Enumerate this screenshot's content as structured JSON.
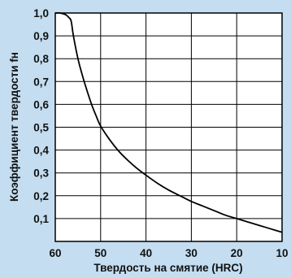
{
  "chart_data": {
    "type": "line",
    "title": "",
    "xlabel": "Твердость на смятие (HRC)",
    "ylabel": "Коэффициент твердости fн",
    "xlim": [
      60,
      10
    ],
    "ylim": [
      0,
      1.0
    ],
    "x_reversed": true,
    "grid": true,
    "x_ticks": [
      60,
      50,
      40,
      30,
      20,
      10
    ],
    "x_tick_labels": [
      "60",
      "50",
      "40",
      "30",
      "20",
      "10"
    ],
    "y_ticks": [
      0.1,
      0.2,
      0.3,
      0.4,
      0.5,
      0.6,
      0.7,
      0.8,
      0.9,
      1.0
    ],
    "y_tick_labels": [
      "0,1",
      "0,2",
      "0,3",
      "0,4",
      "0,5",
      "0,6",
      "0,7",
      "0,8",
      "0,9",
      "1,0"
    ],
    "series": [
      {
        "color": "#000000",
        "x": [
          60,
          59,
          58,
          57.5,
          57,
          56.5,
          56,
          55,
          54,
          53,
          52,
          51,
          50,
          48,
          46,
          44,
          42,
          40,
          37.5,
          35,
          32.5,
          30,
          27.5,
          25,
          22.5,
          20,
          17.5,
          15,
          12.5,
          10
        ],
        "y": [
          1.0,
          1.0,
          0.995,
          0.99,
          0.98,
          0.965,
          0.9,
          0.8,
          0.725,
          0.66,
          0.6,
          0.55,
          0.505,
          0.445,
          0.395,
          0.355,
          0.32,
          0.29,
          0.255,
          0.225,
          0.2,
          0.175,
          0.155,
          0.135,
          0.115,
          0.1,
          0.085,
          0.07,
          0.055,
          0.04
        ]
      }
    ]
  },
  "colors": {
    "background": "#c4ddf0",
    "plot_area": "#ffffff",
    "grid": "#000000",
    "line": "#000000"
  }
}
